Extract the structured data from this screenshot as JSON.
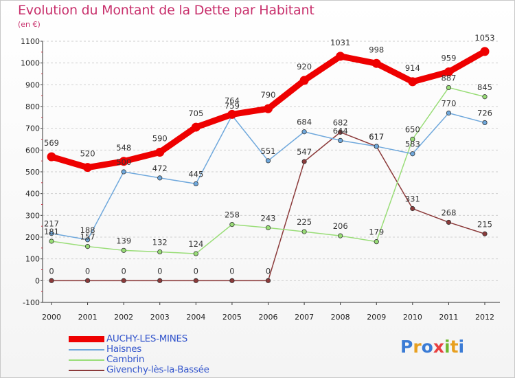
{
  "title": "Evolution du Montant de la Dette par Habitant",
  "subtitle": "(en €)",
  "logo": {
    "letters": [
      {
        "ch": "P",
        "color": "#3a7bd5"
      },
      {
        "ch": "r",
        "color": "#e8a020"
      },
      {
        "ch": "o",
        "color": "#3a7bd5"
      },
      {
        "ch": "x",
        "color": "#e84040"
      },
      {
        "ch": "i",
        "color": "#70b830"
      },
      {
        "ch": "t",
        "color": "#e8a020"
      },
      {
        "ch": "i",
        "color": "#3a7bd5"
      }
    ]
  },
  "chart_data": {
    "type": "line",
    "x": [
      "2000",
      "2001",
      "2002",
      "2003",
      "2004",
      "2005",
      "2006",
      "2007",
      "2008",
      "2009",
      "2010",
      "2011",
      "2012"
    ],
    "yticks": [
      "-100",
      "0",
      "100",
      "200",
      "300",
      "400",
      "500",
      "600",
      "700",
      "800",
      "900",
      "1000",
      "1100"
    ],
    "ylim": [
      -100,
      1100
    ],
    "grid": "horizontal dashed",
    "legend_position": "bottom-left",
    "series": [
      {
        "name": "AUCHY-LES-MINES",
        "color": "#ee0000",
        "values": [
          569,
          520,
          548,
          590,
          705,
          764,
          790,
          920,
          1031,
          998,
          914,
          959,
          1053
        ],
        "labels": [
          "569",
          "520",
          "548",
          "590",
          "705",
          "764",
          "790",
          "920",
          "1031",
          "998",
          "914",
          "959",
          "1053"
        ]
      },
      {
        "name": "Haisnes",
        "color": "#6fa8dc",
        "values": [
          217,
          188,
          500,
          472,
          445,
          759,
          551,
          684,
          644,
          617,
          583,
          770,
          726
        ],
        "labels": [
          "217",
          "188",
          "500",
          "472",
          "445",
          "759",
          "551",
          "684",
          "644",
          "617",
          "583",
          "770",
          "726"
        ]
      },
      {
        "name": "Cambrin",
        "color": "#99dd77",
        "values": [
          181,
          157,
          139,
          132,
          124,
          258,
          243,
          225,
          206,
          179,
          650,
          887,
          845
        ],
        "labels": [
          "181",
          "157",
          "139",
          "132",
          "124",
          "258",
          "243",
          "225",
          "206",
          "179",
          "650",
          "887",
          "845"
        ]
      },
      {
        "name": "Givenchy-lès-la-Bassée",
        "color": "#8b3a3a",
        "values": [
          0,
          0,
          0,
          0,
          0,
          0,
          0,
          547,
          682,
          617,
          331,
          268,
          215
        ],
        "labels": [
          "0",
          "0",
          "0",
          "0",
          "0",
          "0",
          "0",
          "547",
          "682",
          "617",
          "331",
          "268",
          "215"
        ]
      }
    ]
  }
}
